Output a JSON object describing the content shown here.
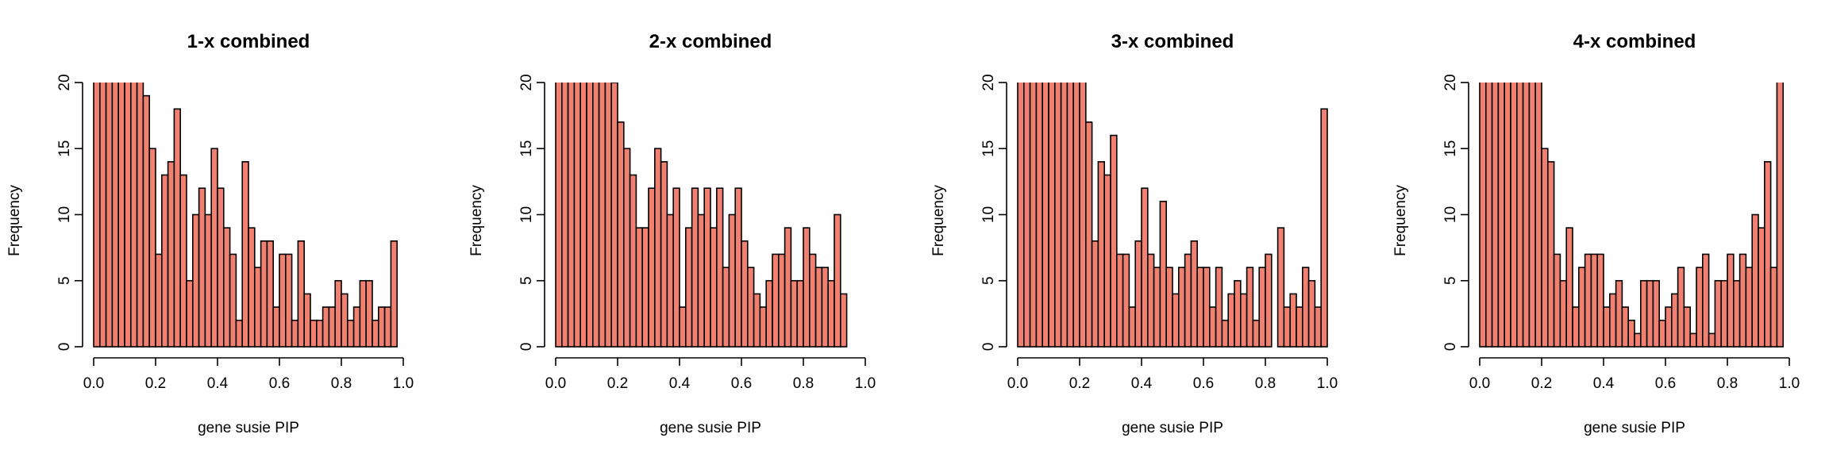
{
  "chart_data": [
    {
      "type": "bar",
      "title": "1-x combined",
      "xlabel": "gene susie PIP",
      "ylabel": "Frequency",
      "xlim": [
        0,
        1
      ],
      "ylim": [
        0,
        20
      ],
      "bin_width": 0.02,
      "x_ticks": [
        "0.0",
        "0.2",
        "0.4",
        "0.6",
        "0.8",
        "1.0"
      ],
      "y_ticks": [
        "0",
        "5",
        "10",
        "15",
        "20"
      ],
      "bar_color": "#F08070",
      "values": [
        21,
        21,
        21,
        21,
        21,
        21,
        21,
        21,
        19,
        15,
        7,
        13,
        14,
        18,
        13,
        5,
        10,
        12,
        10,
        15,
        12,
        9,
        7,
        2,
        14,
        9,
        6,
        8,
        8,
        3,
        7,
        7,
        2,
        8,
        4,
        2,
        2,
        3,
        3,
        5,
        4,
        2,
        3,
        5,
        5,
        2,
        3,
        3,
        8
      ]
    },
    {
      "type": "bar",
      "title": "2-x combined",
      "xlabel": "gene susie PIP",
      "ylabel": "Frequency",
      "xlim": [
        0,
        1
      ],
      "ylim": [
        0,
        20
      ],
      "bin_width": 0.02,
      "x_ticks": [
        "0.0",
        "0.2",
        "0.4",
        "0.6",
        "0.8",
        "1.0"
      ],
      "y_ticks": [
        "0",
        "5",
        "10",
        "15",
        "20"
      ],
      "bar_color": "#F08070",
      "values": [
        21,
        21,
        21,
        21,
        21,
        21,
        21,
        21,
        21,
        20,
        17,
        15,
        13,
        9,
        9,
        12,
        15,
        14,
        10,
        12,
        3,
        9,
        12,
        10,
        12,
        9,
        12,
        6,
        10,
        12,
        8,
        6,
        4,
        3,
        5,
        7,
        7,
        9,
        5,
        5,
        9,
        7,
        6,
        6,
        5,
        10,
        4
      ]
    },
    {
      "type": "bar",
      "title": "3-x combined",
      "xlabel": "gene susie PIP",
      "ylabel": "Frequency",
      "xlim": [
        0,
        1
      ],
      "ylim": [
        0,
        20
      ],
      "bin_width": 0.02,
      "x_ticks": [
        "0.0",
        "0.2",
        "0.4",
        "0.6",
        "0.8",
        "1.0"
      ],
      "y_ticks": [
        "0",
        "5",
        "10",
        "15",
        "20"
      ],
      "bar_color": "#F08070",
      "values": [
        21,
        21,
        21,
        21,
        21,
        21,
        21,
        21,
        21,
        21,
        21,
        17,
        8,
        14,
        13,
        16,
        7,
        7,
        3,
        8,
        12,
        7,
        6,
        11,
        6,
        4,
        6,
        7,
        8,
        6,
        6,
        3,
        6,
        2,
        4,
        5,
        4,
        6,
        2,
        6,
        7,
        0,
        9,
        3,
        4,
        3,
        6,
        5,
        3,
        18
      ]
    },
    {
      "type": "bar",
      "title": "4-x combined",
      "xlabel": "gene susie PIP",
      "ylabel": "Frequency",
      "xlim": [
        0,
        1
      ],
      "ylim": [
        0,
        20
      ],
      "bin_width": 0.02,
      "x_ticks": [
        "0.0",
        "0.2",
        "0.4",
        "0.6",
        "0.8",
        "1.0"
      ],
      "y_ticks": [
        "0",
        "5",
        "10",
        "15",
        "20"
      ],
      "bar_color": "#F08070",
      "values": [
        21,
        21,
        21,
        21,
        21,
        21,
        21,
        21,
        21,
        21,
        15,
        14,
        7,
        5,
        9,
        3,
        6,
        7,
        7,
        7,
        3,
        4,
        5,
        3,
        2,
        1,
        5,
        5,
        5,
        2,
        3,
        4,
        6,
        3,
        1,
        6,
        7,
        1,
        5,
        5,
        7,
        5,
        7,
        6,
        10,
        9,
        14,
        6,
        21
      ]
    }
  ]
}
